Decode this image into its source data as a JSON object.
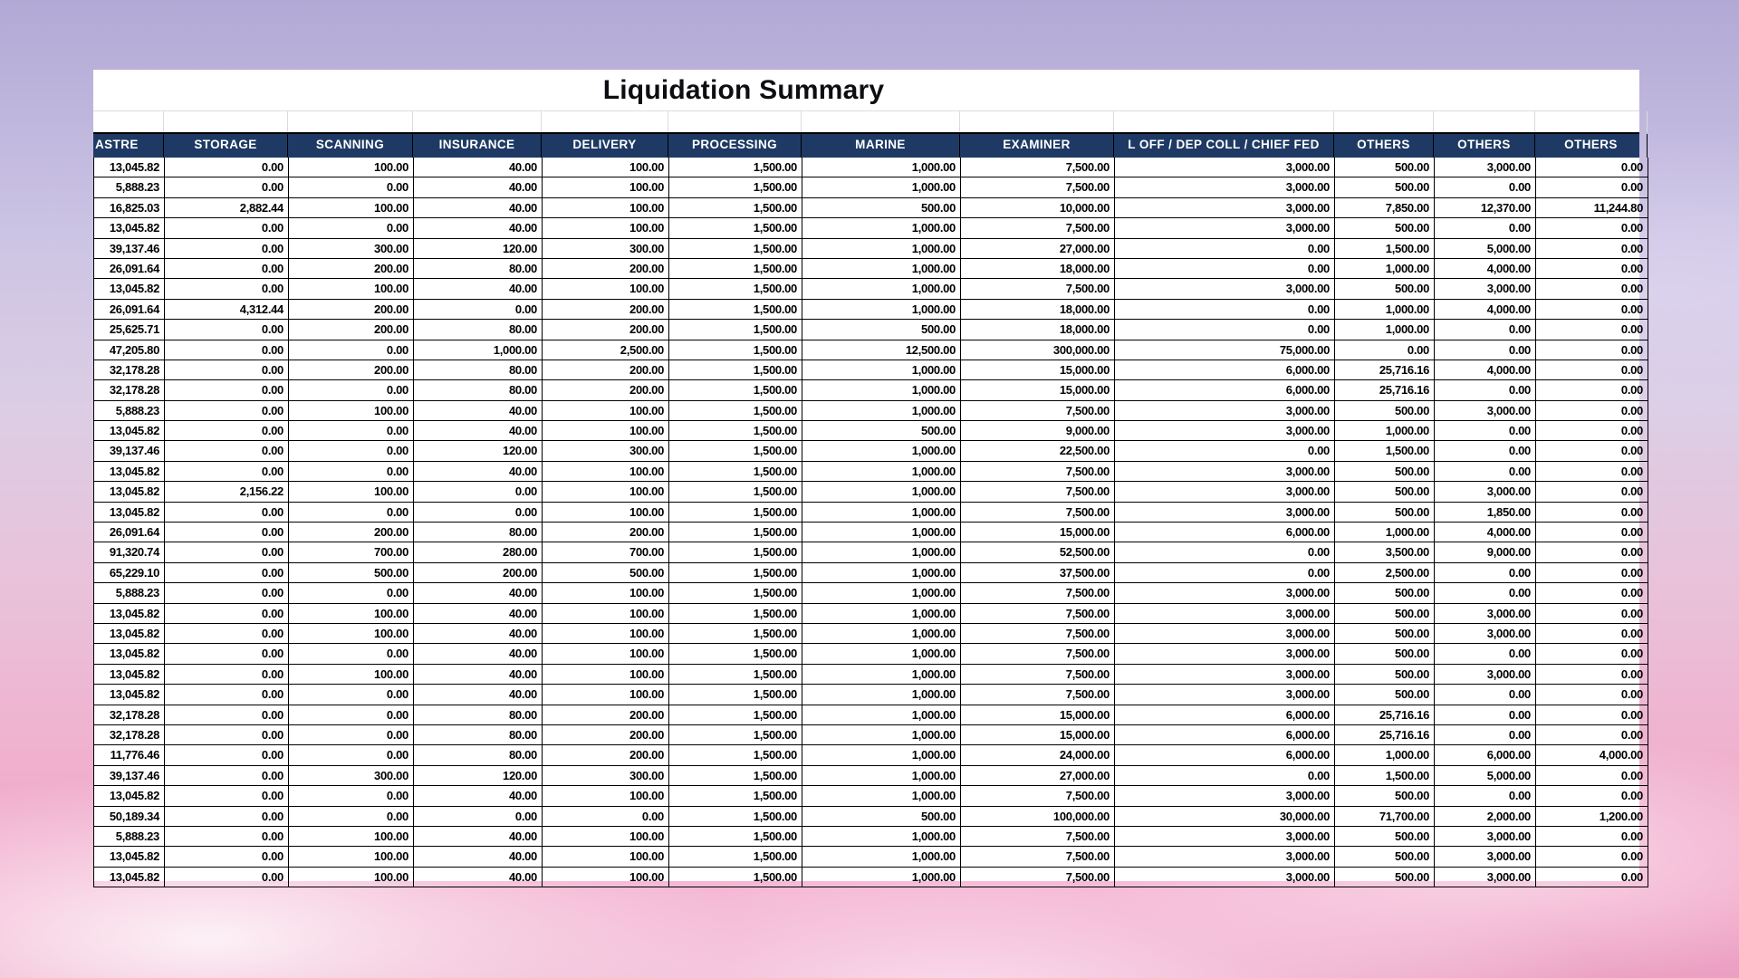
{
  "sheet": {
    "title": "Liquidation Summary"
  },
  "table": {
    "headers": [
      "ASTRE",
      "STORAGE",
      "SCANNING",
      "INSURANCE",
      "DELIVERY",
      "PROCESSING",
      "MARINE",
      "EXAMINER",
      "L OFF / DEP COLL / CHIEF FED",
      "OTHERS",
      "OTHERS",
      "OTHERS"
    ],
    "rows": [
      [
        "13,045.82",
        "0.00",
        "100.00",
        "40.00",
        "100.00",
        "1,500.00",
        "1,000.00",
        "7,500.00",
        "3,000.00",
        "500.00",
        "3,000.00",
        "0.00"
      ],
      [
        "5,888.23",
        "0.00",
        "0.00",
        "40.00",
        "100.00",
        "1,500.00",
        "1,000.00",
        "7,500.00",
        "3,000.00",
        "500.00",
        "0.00",
        "0.00"
      ],
      [
        "16,825.03",
        "2,882.44",
        "100.00",
        "40.00",
        "100.00",
        "1,500.00",
        "500.00",
        "10,000.00",
        "3,000.00",
        "7,850.00",
        "12,370.00",
        "11,244.80"
      ],
      [
        "13,045.82",
        "0.00",
        "0.00",
        "40.00",
        "100.00",
        "1,500.00",
        "1,000.00",
        "7,500.00",
        "3,000.00",
        "500.00",
        "0.00",
        "0.00"
      ],
      [
        "39,137.46",
        "0.00",
        "300.00",
        "120.00",
        "300.00",
        "1,500.00",
        "1,000.00",
        "27,000.00",
        "0.00",
        "1,500.00",
        "5,000.00",
        "0.00"
      ],
      [
        "26,091.64",
        "0.00",
        "200.00",
        "80.00",
        "200.00",
        "1,500.00",
        "1,000.00",
        "18,000.00",
        "0.00",
        "1,000.00",
        "4,000.00",
        "0.00"
      ],
      [
        "13,045.82",
        "0.00",
        "100.00",
        "40.00",
        "100.00",
        "1,500.00",
        "1,000.00",
        "7,500.00",
        "3,000.00",
        "500.00",
        "3,000.00",
        "0.00"
      ],
      [
        "26,091.64",
        "4,312.44",
        "200.00",
        "0.00",
        "200.00",
        "1,500.00",
        "1,000.00",
        "18,000.00",
        "0.00",
        "1,000.00",
        "4,000.00",
        "0.00"
      ],
      [
        "25,625.71",
        "0.00",
        "200.00",
        "80.00",
        "200.00",
        "1,500.00",
        "500.00",
        "18,000.00",
        "0.00",
        "1,000.00",
        "0.00",
        "0.00"
      ],
      [
        "47,205.80",
        "0.00",
        "0.00",
        "1,000.00",
        "2,500.00",
        "1,500.00",
        "12,500.00",
        "300,000.00",
        "75,000.00",
        "0.00",
        "0.00",
        "0.00"
      ],
      [
        "32,178.28",
        "0.00",
        "200.00",
        "80.00",
        "200.00",
        "1,500.00",
        "1,000.00",
        "15,000.00",
        "6,000.00",
        "25,716.16",
        "4,000.00",
        "0.00"
      ],
      [
        "32,178.28",
        "0.00",
        "0.00",
        "80.00",
        "200.00",
        "1,500.00",
        "1,000.00",
        "15,000.00",
        "6,000.00",
        "25,716.16",
        "0.00",
        "0.00"
      ],
      [
        "5,888.23",
        "0.00",
        "100.00",
        "40.00",
        "100.00",
        "1,500.00",
        "1,000.00",
        "7,500.00",
        "3,000.00",
        "500.00",
        "3,000.00",
        "0.00"
      ],
      [
        "13,045.82",
        "0.00",
        "0.00",
        "40.00",
        "100.00",
        "1,500.00",
        "500.00",
        "9,000.00",
        "3,000.00",
        "1,000.00",
        "0.00",
        "0.00"
      ],
      [
        "39,137.46",
        "0.00",
        "0.00",
        "120.00",
        "300.00",
        "1,500.00",
        "1,000.00",
        "22,500.00",
        "0.00",
        "1,500.00",
        "0.00",
        "0.00"
      ],
      [
        "13,045.82",
        "0.00",
        "0.00",
        "40.00",
        "100.00",
        "1,500.00",
        "1,000.00",
        "7,500.00",
        "3,000.00",
        "500.00",
        "0.00",
        "0.00"
      ],
      [
        "13,045.82",
        "2,156.22",
        "100.00",
        "0.00",
        "100.00",
        "1,500.00",
        "1,000.00",
        "7,500.00",
        "3,000.00",
        "500.00",
        "3,000.00",
        "0.00"
      ],
      [
        "13,045.82",
        "0.00",
        "0.00",
        "0.00",
        "100.00",
        "1,500.00",
        "1,000.00",
        "7,500.00",
        "3,000.00",
        "500.00",
        "1,850.00",
        "0.00"
      ],
      [
        "26,091.64",
        "0.00",
        "200.00",
        "80.00",
        "200.00",
        "1,500.00",
        "1,000.00",
        "15,000.00",
        "6,000.00",
        "1,000.00",
        "4,000.00",
        "0.00"
      ],
      [
        "91,320.74",
        "0.00",
        "700.00",
        "280.00",
        "700.00",
        "1,500.00",
        "1,000.00",
        "52,500.00",
        "0.00",
        "3,500.00",
        "9,000.00",
        "0.00"
      ],
      [
        "65,229.10",
        "0.00",
        "500.00",
        "200.00",
        "500.00",
        "1,500.00",
        "1,000.00",
        "37,500.00",
        "0.00",
        "2,500.00",
        "0.00",
        "0.00"
      ],
      [
        "5,888.23",
        "0.00",
        "0.00",
        "40.00",
        "100.00",
        "1,500.00",
        "1,000.00",
        "7,500.00",
        "3,000.00",
        "500.00",
        "0.00",
        "0.00"
      ],
      [
        "13,045.82",
        "0.00",
        "100.00",
        "40.00",
        "100.00",
        "1,500.00",
        "1,000.00",
        "7,500.00",
        "3,000.00",
        "500.00",
        "3,000.00",
        "0.00"
      ],
      [
        "13,045.82",
        "0.00",
        "100.00",
        "40.00",
        "100.00",
        "1,500.00",
        "1,000.00",
        "7,500.00",
        "3,000.00",
        "500.00",
        "3,000.00",
        "0.00"
      ],
      [
        "13,045.82",
        "0.00",
        "0.00",
        "40.00",
        "100.00",
        "1,500.00",
        "1,000.00",
        "7,500.00",
        "3,000.00",
        "500.00",
        "0.00",
        "0.00"
      ],
      [
        "13,045.82",
        "0.00",
        "100.00",
        "40.00",
        "100.00",
        "1,500.00",
        "1,000.00",
        "7,500.00",
        "3,000.00",
        "500.00",
        "3,000.00",
        "0.00"
      ],
      [
        "13,045.82",
        "0.00",
        "0.00",
        "40.00",
        "100.00",
        "1,500.00",
        "1,000.00",
        "7,500.00",
        "3,000.00",
        "500.00",
        "0.00",
        "0.00"
      ],
      [
        "32,178.28",
        "0.00",
        "0.00",
        "80.00",
        "200.00",
        "1,500.00",
        "1,000.00",
        "15,000.00",
        "6,000.00",
        "25,716.16",
        "0.00",
        "0.00"
      ],
      [
        "32,178.28",
        "0.00",
        "0.00",
        "80.00",
        "200.00",
        "1,500.00",
        "1,000.00",
        "15,000.00",
        "6,000.00",
        "25,716.16",
        "0.00",
        "0.00"
      ],
      [
        "11,776.46",
        "0.00",
        "0.00",
        "80.00",
        "200.00",
        "1,500.00",
        "1,000.00",
        "24,000.00",
        "6,000.00",
        "1,000.00",
        "6,000.00",
        "4,000.00"
      ],
      [
        "39,137.46",
        "0.00",
        "300.00",
        "120.00",
        "300.00",
        "1,500.00",
        "1,000.00",
        "27,000.00",
        "0.00",
        "1,500.00",
        "5,000.00",
        "0.00"
      ],
      [
        "13,045.82",
        "0.00",
        "0.00",
        "40.00",
        "100.00",
        "1,500.00",
        "1,000.00",
        "7,500.00",
        "3,000.00",
        "500.00",
        "0.00",
        "0.00"
      ],
      [
        "50,189.34",
        "0.00",
        "0.00",
        "0.00",
        "0.00",
        "1,500.00",
        "500.00",
        "100,000.00",
        "30,000.00",
        "71,700.00",
        "2,000.00",
        "1,200.00"
      ],
      [
        "5,888.23",
        "0.00",
        "100.00",
        "40.00",
        "100.00",
        "1,500.00",
        "1,000.00",
        "7,500.00",
        "3,000.00",
        "500.00",
        "3,000.00",
        "0.00"
      ],
      [
        "13,045.82",
        "0.00",
        "100.00",
        "40.00",
        "100.00",
        "1,500.00",
        "1,000.00",
        "7,500.00",
        "3,000.00",
        "500.00",
        "3,000.00",
        "0.00"
      ],
      [
        "13,045.82",
        "0.00",
        "100.00",
        "40.00",
        "100.00",
        "1,500.00",
        "1,000.00",
        "7,500.00",
        "3,000.00",
        "500.00",
        "3,000.00",
        "0.00"
      ]
    ]
  },
  "colors": {
    "header_bg": "#1e3a64",
    "header_text": "#ffffff",
    "grid": "#000000",
    "sheet_bg": "#ffffff",
    "title_text": "#0d0d12"
  }
}
